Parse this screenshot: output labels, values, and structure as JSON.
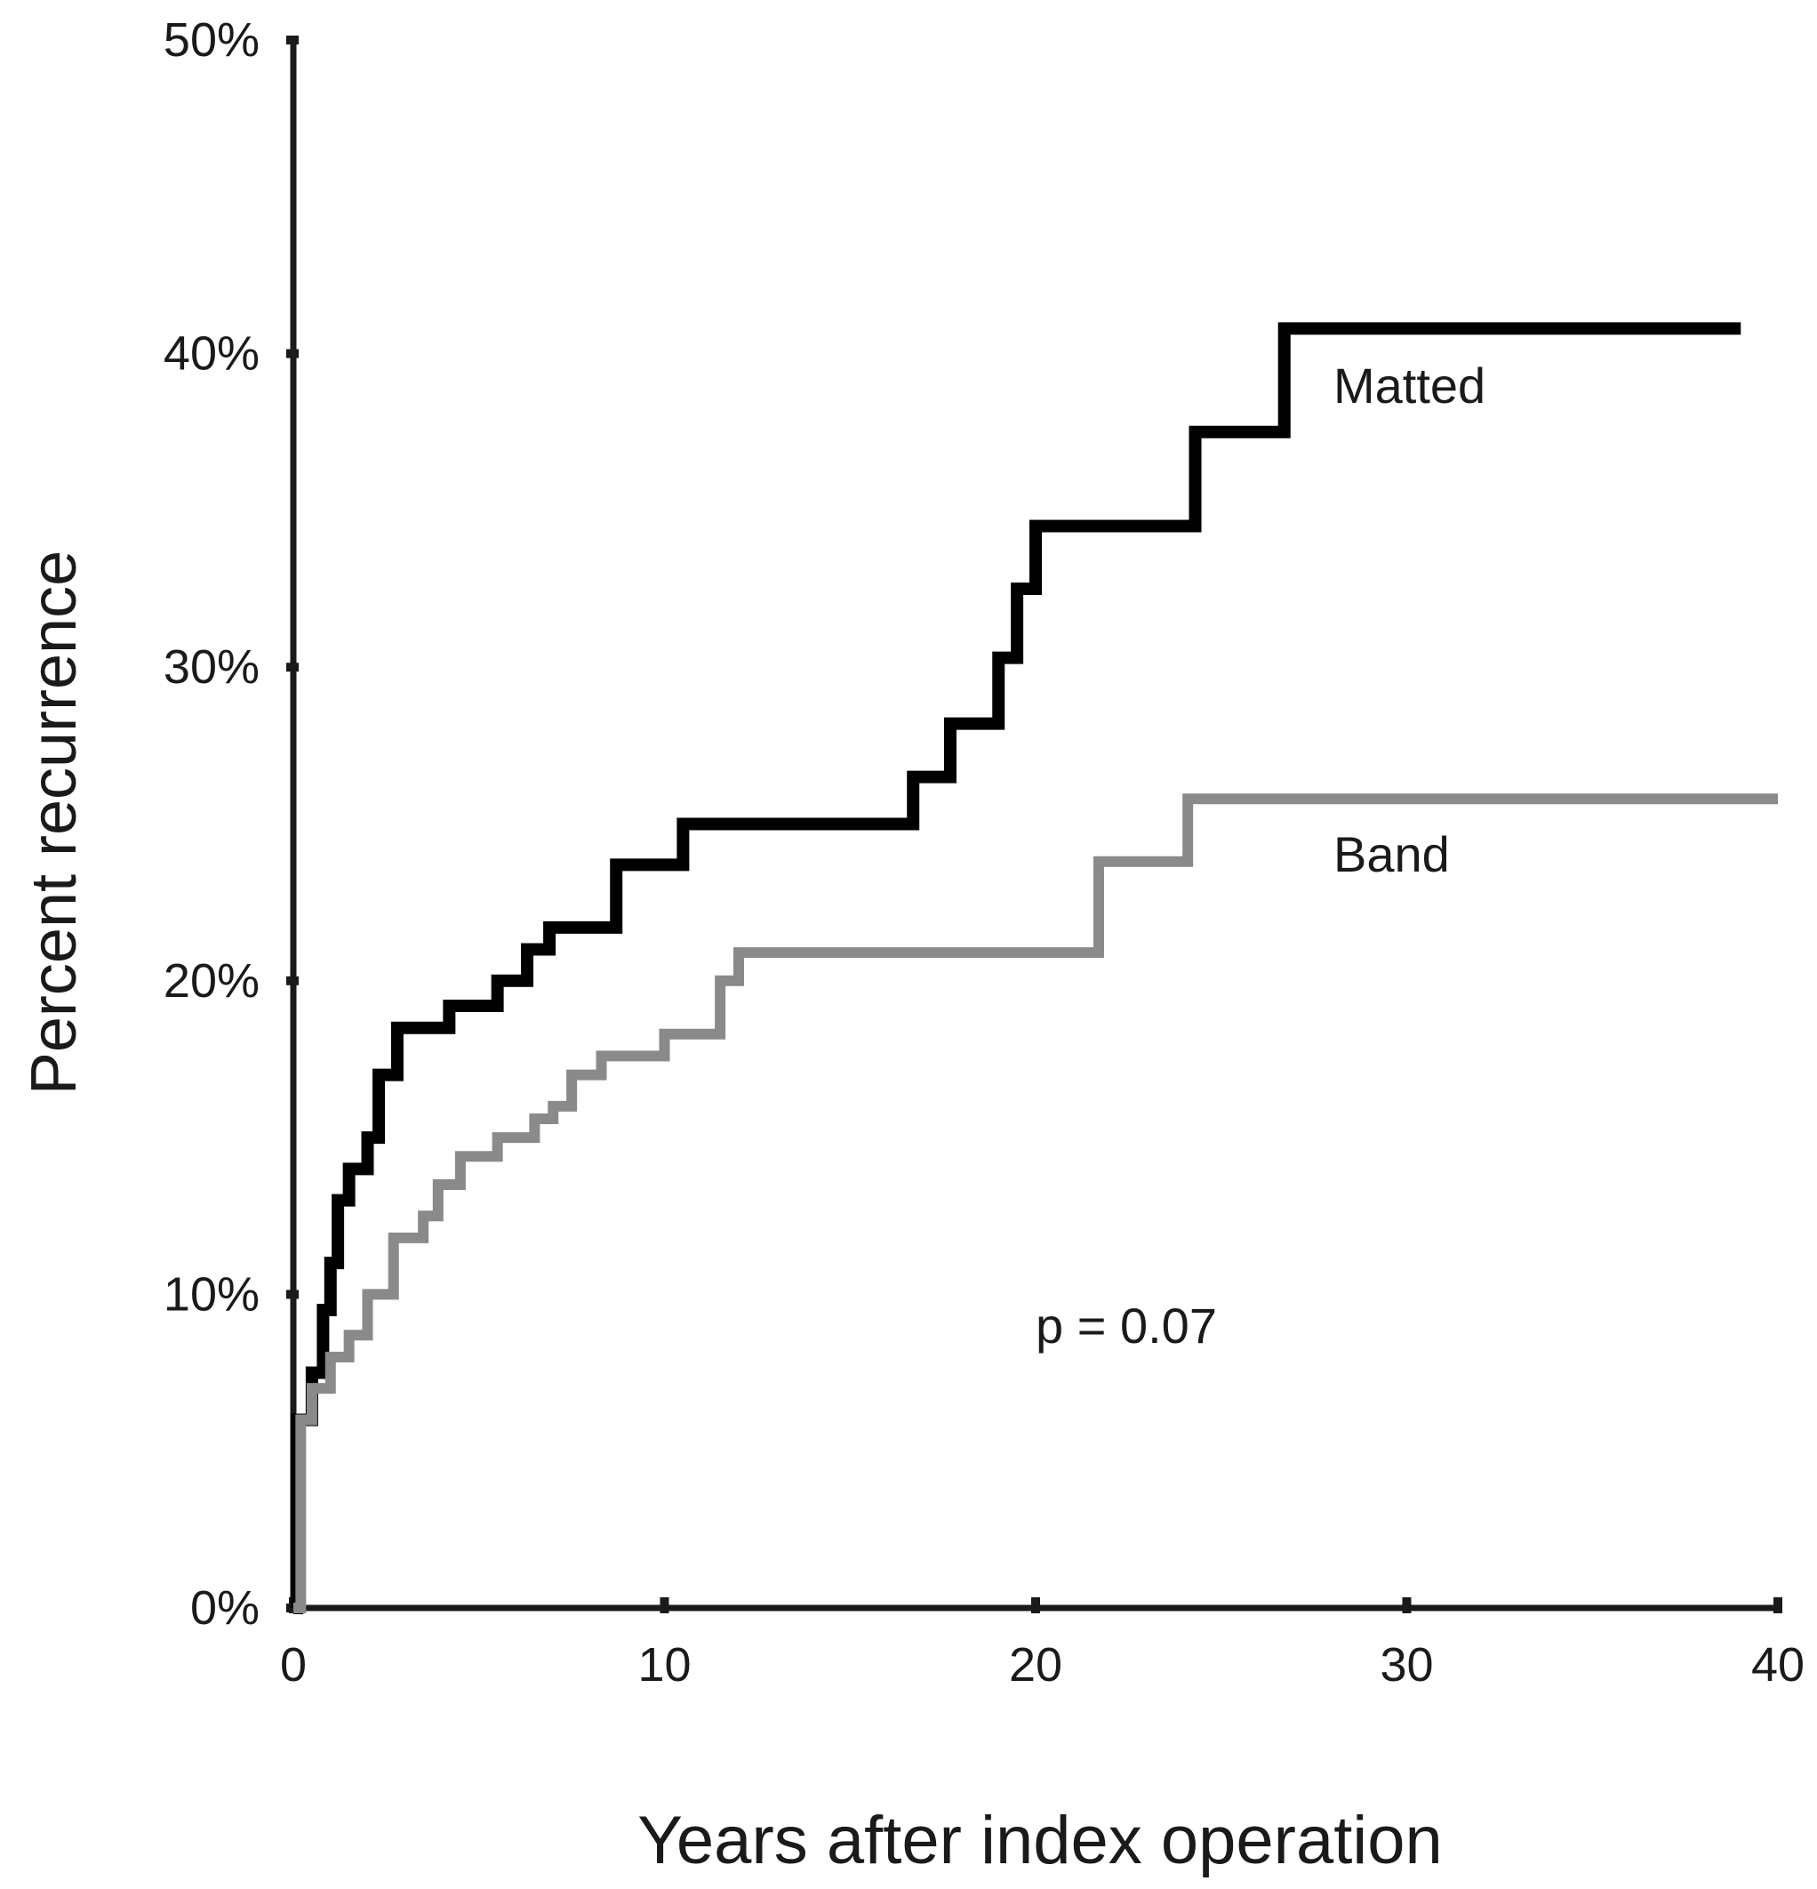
{
  "chart_data": {
    "type": "line",
    "step": true,
    "xlabel": "Years after index operation",
    "ylabel": "Percent recurrence",
    "xlim": [
      0,
      40
    ],
    "ylim": [
      0,
      50
    ],
    "x_ticks": [
      0,
      10,
      20,
      30,
      40
    ],
    "x_tick_labels": [
      "0",
      "10",
      "20",
      "30",
      "40"
    ],
    "y_ticks": [
      0,
      10,
      20,
      30,
      40,
      50
    ],
    "y_tick_labels": [
      "0%",
      "10%",
      "20%",
      "30%",
      "40%",
      "50%"
    ],
    "grid": false,
    "series": [
      {
        "name": "Matted",
        "color": "#000000",
        "points": [
          [
            0,
            0
          ],
          [
            0.1,
            6
          ],
          [
            0.5,
            7.5
          ],
          [
            0.8,
            9.5
          ],
          [
            1.0,
            11
          ],
          [
            1.2,
            13
          ],
          [
            1.5,
            14
          ],
          [
            2.0,
            15
          ],
          [
            2.3,
            17
          ],
          [
            2.8,
            18.5
          ],
          [
            4.2,
            19.2
          ],
          [
            5.5,
            20
          ],
          [
            6.3,
            21
          ],
          [
            6.9,
            21.7
          ],
          [
            8.7,
            23.7
          ],
          [
            10.5,
            25
          ],
          [
            16.7,
            26.5
          ],
          [
            17.7,
            28.2
          ],
          [
            19.0,
            30.3
          ],
          [
            19.5,
            32.5
          ],
          [
            20.0,
            34.5
          ],
          [
            24.3,
            37.5
          ],
          [
            26.7,
            40.8
          ],
          [
            39.0,
            40.8
          ]
        ]
      },
      {
        "name": "Band",
        "color": "#8a8a8a",
        "points": [
          [
            0,
            0
          ],
          [
            0.2,
            6
          ],
          [
            0.5,
            7
          ],
          [
            1.0,
            8
          ],
          [
            1.5,
            8.7
          ],
          [
            2.0,
            10
          ],
          [
            2.7,
            11.8
          ],
          [
            3.5,
            12.5
          ],
          [
            3.9,
            13.5
          ],
          [
            4.5,
            14.4
          ],
          [
            5.5,
            15
          ],
          [
            6.5,
            15.6
          ],
          [
            7.0,
            16
          ],
          [
            7.5,
            17
          ],
          [
            8.3,
            17.6
          ],
          [
            10.0,
            18.3
          ],
          [
            11.5,
            20
          ],
          [
            12.0,
            20.9
          ],
          [
            21.7,
            23.8
          ],
          [
            24.1,
            25.8
          ],
          [
            40.0,
            25.8
          ]
        ]
      }
    ],
    "annotations": [
      {
        "text": "p = 0.07",
        "x": 23,
        "y": 9
      }
    ]
  }
}
